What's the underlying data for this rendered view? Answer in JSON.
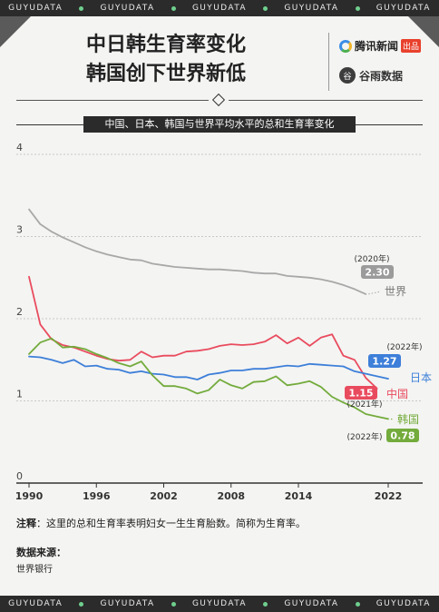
{
  "ribbon": {
    "word": "GUYUDATA"
  },
  "header": {
    "title_line1": "中日韩生育率变化",
    "title_line2": "韩国创下世界新低",
    "brand1": "腾讯新闻",
    "brand1_tag": "出品",
    "brand2": "谷雨数据",
    "brand2_mark": "谷"
  },
  "chart_title": "中国、日本、韩国与世界平均水平的总和生育率变化",
  "note_label": "注释",
  "note_text": "：这里的总和生育率表明妇女一生生育胎数。简称为生育率。",
  "source_label": "数据来源：",
  "source_value": "世界银行",
  "colors": {
    "world": "#a8a8a8",
    "china": "#e94b5e",
    "japan": "#3d7fd9",
    "korea": "#73ab3c",
    "background": "#f4f4f2",
    "ribbon": "#2b2b2b"
  },
  "chart_data": {
    "type": "line",
    "xlim": [
      1990,
      2022
    ],
    "ylim": [
      0,
      4
    ],
    "x_ticks": [
      "1990",
      "1996",
      "2002",
      "2008",
      "2014",
      "2022"
    ],
    "y_ticks": [
      "0",
      "1",
      "2",
      "3",
      "4"
    ],
    "grid": true,
    "series": [
      {
        "name": "世界",
        "key": "world",
        "x": [
          1990,
          1991,
          1992,
          1993,
          1994,
          1995,
          1996,
          1997,
          1998,
          1999,
          2000,
          2001,
          2002,
          2003,
          2004,
          2005,
          2006,
          2007,
          2008,
          2009,
          2010,
          2011,
          2012,
          2013,
          2014,
          2015,
          2016,
          2017,
          2018,
          2019,
          2020
        ],
        "values": [
          3.33,
          3.15,
          3.06,
          2.99,
          2.93,
          2.87,
          2.82,
          2.78,
          2.75,
          2.72,
          2.71,
          2.67,
          2.65,
          2.63,
          2.62,
          2.61,
          2.6,
          2.6,
          2.59,
          2.58,
          2.56,
          2.55,
          2.55,
          2.52,
          2.51,
          2.5,
          2.48,
          2.45,
          2.41,
          2.36,
          2.3
        ],
        "end_label": "2.30",
        "end_year_label": "(2020年)"
      },
      {
        "name": "中国",
        "key": "china",
        "x": [
          1990,
          1991,
          1992,
          1993,
          1994,
          1995,
          1996,
          1997,
          1998,
          1999,
          2000,
          2001,
          2002,
          2003,
          2004,
          2005,
          2006,
          2007,
          2008,
          2009,
          2010,
          2011,
          2012,
          2013,
          2014,
          2015,
          2016,
          2017,
          2018,
          2019,
          2020,
          2021
        ],
        "values": [
          2.51,
          1.93,
          1.75,
          1.68,
          1.65,
          1.6,
          1.55,
          1.51,
          1.49,
          1.5,
          1.6,
          1.53,
          1.55,
          1.55,
          1.6,
          1.61,
          1.63,
          1.67,
          1.69,
          1.68,
          1.69,
          1.72,
          1.8,
          1.7,
          1.77,
          1.67,
          1.77,
          1.81,
          1.55,
          1.5,
          1.28,
          1.15
        ],
        "end_label": "1.15",
        "end_year_label": "(2021年)"
      },
      {
        "name": "日本",
        "key": "japan",
        "x": [
          1990,
          1991,
          1992,
          1993,
          1994,
          1995,
          1996,
          1997,
          1998,
          1999,
          2000,
          2001,
          2002,
          2003,
          2004,
          2005,
          2006,
          2007,
          2008,
          2009,
          2010,
          2011,
          2012,
          2013,
          2014,
          2015,
          2016,
          2017,
          2018,
          2019,
          2020,
          2021,
          2022
        ],
        "values": [
          1.54,
          1.53,
          1.5,
          1.46,
          1.5,
          1.42,
          1.43,
          1.39,
          1.38,
          1.34,
          1.36,
          1.33,
          1.32,
          1.29,
          1.29,
          1.26,
          1.32,
          1.34,
          1.37,
          1.37,
          1.39,
          1.39,
          1.41,
          1.43,
          1.42,
          1.45,
          1.44,
          1.43,
          1.42,
          1.36,
          1.33,
          1.3,
          1.27
        ],
        "end_label": "1.27",
        "end_year_label": "(2022年)"
      },
      {
        "name": "韩国",
        "key": "korea",
        "x": [
          1990,
          1991,
          1992,
          1993,
          1994,
          1995,
          1996,
          1997,
          1998,
          1999,
          2000,
          2001,
          2002,
          2003,
          2004,
          2005,
          2006,
          2007,
          2008,
          2009,
          2010,
          2011,
          2012,
          2013,
          2014,
          2015,
          2016,
          2017,
          2018,
          2019,
          2020,
          2021,
          2022
        ],
        "values": [
          1.57,
          1.71,
          1.76,
          1.65,
          1.66,
          1.63,
          1.57,
          1.52,
          1.46,
          1.42,
          1.48,
          1.31,
          1.18,
          1.18,
          1.15,
          1.09,
          1.13,
          1.26,
          1.19,
          1.15,
          1.23,
          1.24,
          1.3,
          1.19,
          1.21,
          1.24,
          1.17,
          1.05,
          0.98,
          0.92,
          0.84,
          0.81,
          0.78
        ],
        "end_label": "0.78",
        "end_year_label": "(2022年)"
      }
    ]
  }
}
